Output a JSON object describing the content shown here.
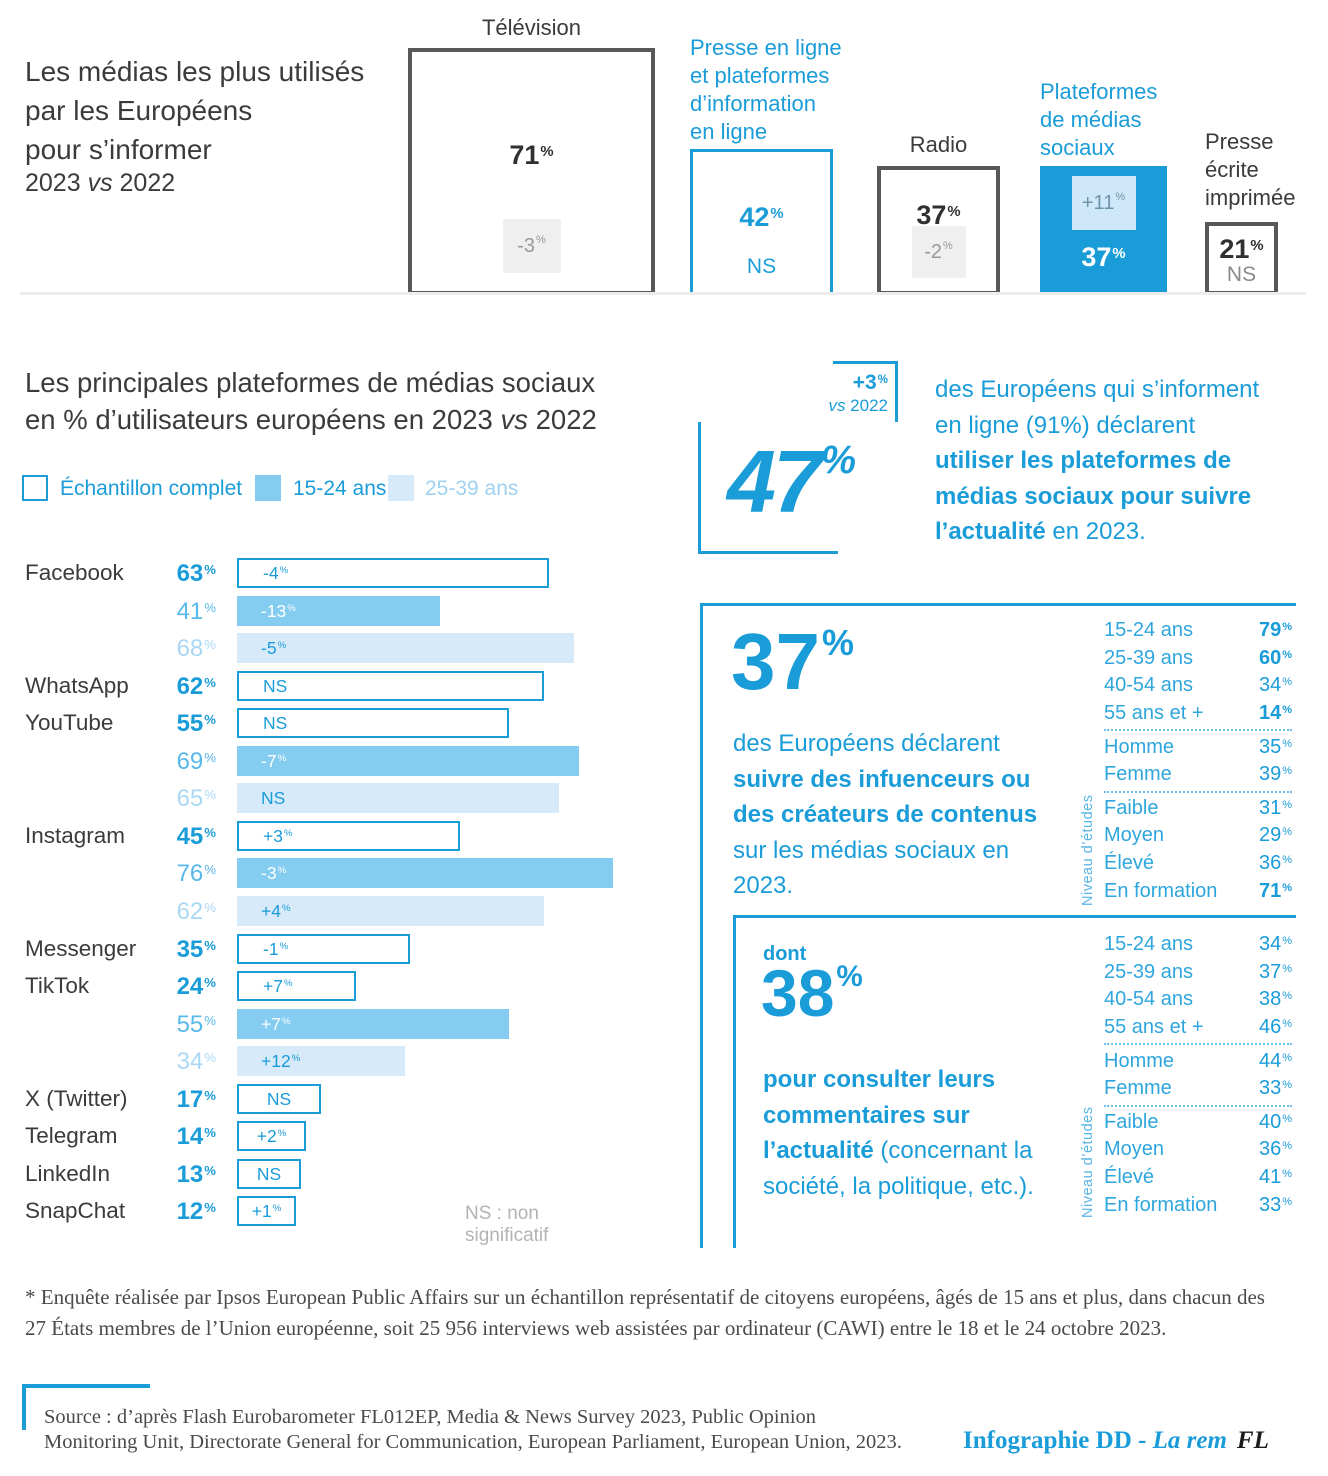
{
  "meta": {
    "ns_note": "NS : non significatif",
    "unit": "%"
  },
  "colors": {
    "accent": "#1a9cd9",
    "mid_blue": "#84ccf0",
    "light_blue": "#d6eaf9",
    "dark_text": "#3b3b3b",
    "box_border": "#57585a",
    "gray_box": "#efefef",
    "gray_text": "#999999"
  },
  "section1": {
    "title_lines": [
      "Les médias les plus utilisés",
      "par les Européens",
      "pour s’informer"
    ],
    "subtitle_segments": [
      {
        "t": "2023 "
      },
      {
        "t": "vs",
        "i": true
      },
      {
        "t": " 2022"
      }
    ]
  },
  "section2": {
    "title_line1": "Les principales plateformes de médias sociaux",
    "title_line2_segments": [
      {
        "t": "en % d’utilisateurs européens en 2023 "
      },
      {
        "t": "vs",
        "i": true
      },
      {
        "t": " 2022"
      }
    ],
    "legend": [
      {
        "label": "Échantillon complet",
        "swatch": "outline"
      },
      {
        "label": "15-24 ans",
        "swatch": "mid"
      },
      {
        "label": "25-39 ans",
        "swatch": "light"
      }
    ]
  },
  "chart_data": [
    {
      "type": "bar",
      "title": "Les médias les plus utilisés par les Européens pour s’informer, 2023 vs 2022",
      "unit": "%",
      "ylim": [
        0,
        80
      ],
      "items": [
        {
          "label_lines": [
            "Télévision"
          ],
          "label_color": "dark",
          "value": 71,
          "delta": "-3",
          "style": "outline-dark",
          "variant": "tv",
          "delta_style": "gray-box"
        },
        {
          "label_lines": [
            "Presse en ligne",
            "et plateformes",
            "d’information",
            "en ligne"
          ],
          "label_color": "accent",
          "value": 42,
          "delta": "NS",
          "style": "outline-accent",
          "variant": "online",
          "delta_style": "text-accent"
        },
        {
          "label_lines": [
            "Radio"
          ],
          "label_color": "dark",
          "value": 37,
          "delta": "-2",
          "style": "outline-dark",
          "variant": "radio",
          "delta_style": "gray-box"
        },
        {
          "label_lines": [
            "Plateformes",
            "de médias",
            "sociaux"
          ],
          "label_color": "accent",
          "value": 37,
          "delta": "+11",
          "style": "fill-accent",
          "variant": "social",
          "delta_style": "light-box"
        },
        {
          "label_lines": [
            "Presse",
            "écrite",
            "imprimée"
          ],
          "label_color": "dark",
          "value": 21,
          "delta": "NS",
          "style": "outline-dark",
          "variant": "print",
          "delta_style": "text-gray"
        }
      ]
    },
    {
      "type": "bar",
      "title": "Les principales plateformes de médias sociaux en % d’utilisateurs européens en 2023 vs 2022",
      "unit": "%",
      "xlim": [
        0,
        80
      ],
      "segments": [
        "Échantillon complet",
        "15-24 ans",
        "25-39 ans"
      ],
      "groups": [
        {
          "platform": "Facebook",
          "rows": [
            {
              "segment": "full",
              "value": 63,
              "delta": "-4"
            },
            {
              "segment": "15-24",
              "value": 41,
              "delta": "-13"
            },
            {
              "segment": "25-39",
              "value": 68,
              "delta": "-5"
            }
          ]
        },
        {
          "platform": "WhatsApp",
          "rows": [
            {
              "segment": "full",
              "value": 62,
              "delta": "NS"
            }
          ]
        },
        {
          "platform": "YouTube",
          "rows": [
            {
              "segment": "full",
              "value": 55,
              "delta": "NS"
            },
            {
              "segment": "15-24",
              "value": 69,
              "delta": "-7"
            },
            {
              "segment": "25-39",
              "value": 65,
              "delta": "NS"
            }
          ]
        },
        {
          "platform": "Instagram",
          "rows": [
            {
              "segment": "full",
              "value": 45,
              "delta": "+3"
            },
            {
              "segment": "15-24",
              "value": 76,
              "delta": "-3"
            },
            {
              "segment": "25-39",
              "value": 62,
              "delta": "+4"
            }
          ]
        },
        {
          "platform": "Messenger",
          "rows": [
            {
              "segment": "full",
              "value": 35,
              "delta": "-1"
            }
          ]
        },
        {
          "platform": "TikTok",
          "rows": [
            {
              "segment": "full",
              "value": 24,
              "delta": "+7"
            },
            {
              "segment": "15-24",
              "value": 55,
              "delta": "+7"
            },
            {
              "segment": "25-39",
              "value": 34,
              "delta": "+12"
            }
          ]
        },
        {
          "platform": "X (Twitter)",
          "rows": [
            {
              "segment": "full",
              "value": 17,
              "delta": "NS"
            }
          ]
        },
        {
          "platform": "Telegram",
          "rows": [
            {
              "segment": "full",
              "value": 14,
              "delta": "+2"
            }
          ]
        },
        {
          "platform": "LinkedIn",
          "rows": [
            {
              "segment": "full",
              "value": 13,
              "delta": "NS"
            }
          ]
        },
        {
          "platform": "SnapChat",
          "rows": [
            {
              "segment": "full",
              "value": 12,
              "delta": "+1"
            }
          ]
        }
      ]
    },
    {
      "type": "table",
      "title": "37% des Européens déclarent suivre des infuenceurs ou des créateurs de contenus sur les médias sociaux en 2023",
      "axis_label": "Niveau d’études",
      "rows": [
        {
          "label": "15-24 ans",
          "value": 79,
          "bold": true
        },
        {
          "label": "25-39 ans",
          "value": 60,
          "bold": true
        },
        {
          "label": "40-54 ans",
          "value": 34,
          "bold": false
        },
        {
          "label": "55 ans et +",
          "value": 14,
          "bold": true
        },
        {
          "label": "Homme",
          "value": 35,
          "bold": false
        },
        {
          "label": "Femme",
          "value": 39,
          "bold": false
        },
        {
          "label": "Faible",
          "value": 31,
          "bold": false
        },
        {
          "label": "Moyen",
          "value": 29,
          "bold": false
        },
        {
          "label": "Élevé",
          "value": 36,
          "bold": false
        },
        {
          "label": "En formation",
          "value": 71,
          "bold": true
        }
      ],
      "separators_after": [
        3,
        5
      ]
    },
    {
      "type": "table",
      "title": "dont 38% pour consulter leurs commentaires sur l’actualité (concernant la société, la politique, etc.)",
      "axis_label": "Niveau d’études",
      "rows": [
        {
          "label": "15-24 ans",
          "value": 34,
          "bold": false
        },
        {
          "label": "25-39 ans",
          "value": 37,
          "bold": false
        },
        {
          "label": "40-54 ans",
          "value": 38,
          "bold": false
        },
        {
          "label": "55 ans et +",
          "value": 46,
          "bold": false
        },
        {
          "label": "Homme",
          "value": 44,
          "bold": false
        },
        {
          "label": "Femme",
          "value": 33,
          "bold": false
        },
        {
          "label": "Faible",
          "value": 40,
          "bold": false
        },
        {
          "label": "Moyen",
          "value": 36,
          "bold": false
        },
        {
          "label": "Élevé",
          "value": 41,
          "bold": false
        },
        {
          "label": "En formation",
          "value": 33,
          "bold": false
        }
      ],
      "separators_after": [
        3,
        5
      ]
    }
  ],
  "stat47": {
    "value": "47",
    "delta": "+3",
    "delta_caption_segments": [
      {
        "t": "vs",
        "i": true
      },
      {
        "t": " 2022"
      }
    ],
    "text_lines": [
      [
        {
          "t": "des Européens qui s’informent"
        }
      ],
      [
        {
          "t": "en ligne (91%) déclarent"
        }
      ],
      [
        {
          "t": "utiliser les plateformes de",
          "b": true
        }
      ],
      [
        {
          "t": "médias sociaux pour suivre",
          "b": true
        }
      ],
      [
        {
          "t": "l’actualité",
          "b": true
        },
        {
          "t": " en 2023."
        }
      ]
    ]
  },
  "stat37": {
    "value": "37",
    "text_lines": [
      [
        {
          "t": "des Européens déclarent"
        }
      ],
      [
        {
          "t": "suivre des infuenceurs ou",
          "b": true
        }
      ],
      [
        {
          "t": "des créateurs de contenus",
          "b": true
        }
      ],
      [
        {
          "t": "sur les médias sociaux en"
        }
      ],
      [
        {
          "t": "2023."
        }
      ]
    ]
  },
  "stat38": {
    "prefix": "dont",
    "value": "38",
    "text_lines": [
      [
        {
          "t": "pour consulter leurs",
          "b": true
        }
      ],
      [
        {
          "t": "commentaires sur",
          "b": true
        }
      ],
      [
        {
          "t": "l’actualité",
          "b": true
        },
        {
          "t": " (concernant la"
        }
      ],
      [
        {
          "t": "société, la politique, etc.)."
        }
      ]
    ]
  },
  "footer": {
    "footnote_lines": [
      "* Enquête réalisée par Ipsos European Public Affairs sur un échantillon représentatif de citoyens européens, âgés de 15 ans et plus, dans chacun des",
      "27 États membres de l’Union européenne, soit 25 956 interviews web assistées par ordinateur (CAWI) entre le 18 et le 24 octobre 2023."
    ],
    "source_lines": [
      "Source : d’après Flash Eurobarometer FL012EP, Media & News Survey 2023, Public Opinion",
      "Monitoring Unit, Directorate General for Communication, European Parliament, European Union, 2023."
    ],
    "credit": {
      "part1": "Infographie DD - ",
      "part2": "La rem",
      "part3": "FL"
    }
  }
}
